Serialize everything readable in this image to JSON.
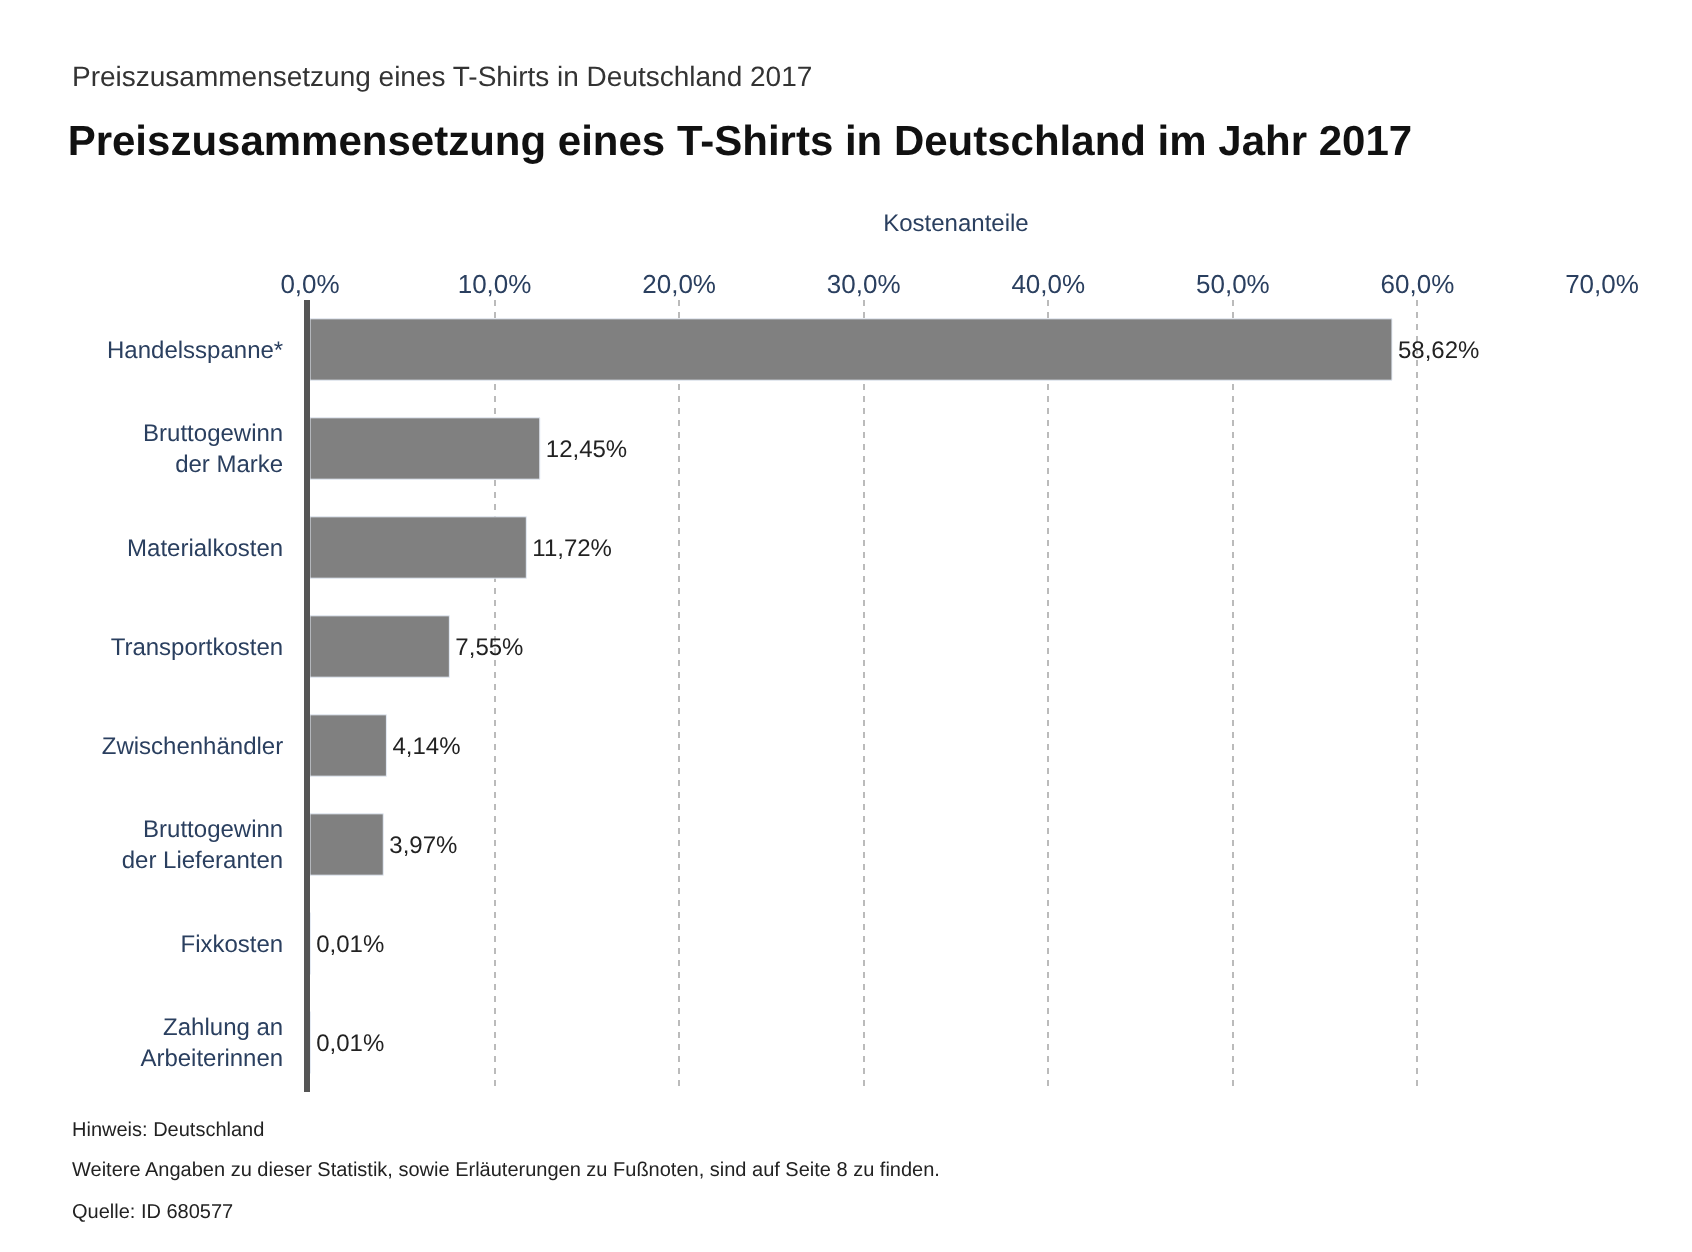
{
  "chart_data": {
    "type": "bar",
    "orientation": "horizontal",
    "subtitle": "Preiszusammensetzung eines T-Shirts in Deutschland 2017",
    "title": "Preiszusammensetzung eines T-Shirts in Deutschland im Jahr 2017",
    "xlabel": "Kostenanteile",
    "categories": [
      "Handelsspanne*",
      "Bruttogewinn der Marke",
      "Materialkosten",
      "Transportkosten",
      "Zwischenhändler",
      "Bruttogewinn der Lieferanten",
      "Fixkosten",
      "Zahlung an Arbeiterinnen"
    ],
    "values": [
      58.62,
      12.45,
      11.72,
      7.55,
      4.14,
      3.97,
      0.01,
      0.01
    ],
    "value_labels": [
      "58,62%",
      "12,45%",
      "11,72%",
      "7,55%",
      "4,14%",
      "3,97%",
      "0,01%",
      "0,01%"
    ],
    "color": "#808080",
    "xlim": [
      0,
      70
    ],
    "xticks": [
      {
        "value": 0,
        "label": "0,0%"
      },
      {
        "value": 10,
        "label": "10,0%"
      },
      {
        "value": 20,
        "label": "20,0%"
      },
      {
        "value": 30,
        "label": "30,0%"
      },
      {
        "value": 40,
        "label": "40,0%"
      },
      {
        "value": 50,
        "label": "50,0%"
      },
      {
        "value": 60,
        "label": "60,0%"
      },
      {
        "value": 70,
        "label": "70,0%"
      }
    ],
    "grid": "x",
    "legend": false,
    "annotations": [
      "Hinweis: Deutschland",
      "Weitere Angaben zu dieser Statistik, sowie Erläuterungen zu Fußnoten, sind auf Seite 8 zu finden.",
      "Quelle: ID 680577"
    ]
  }
}
